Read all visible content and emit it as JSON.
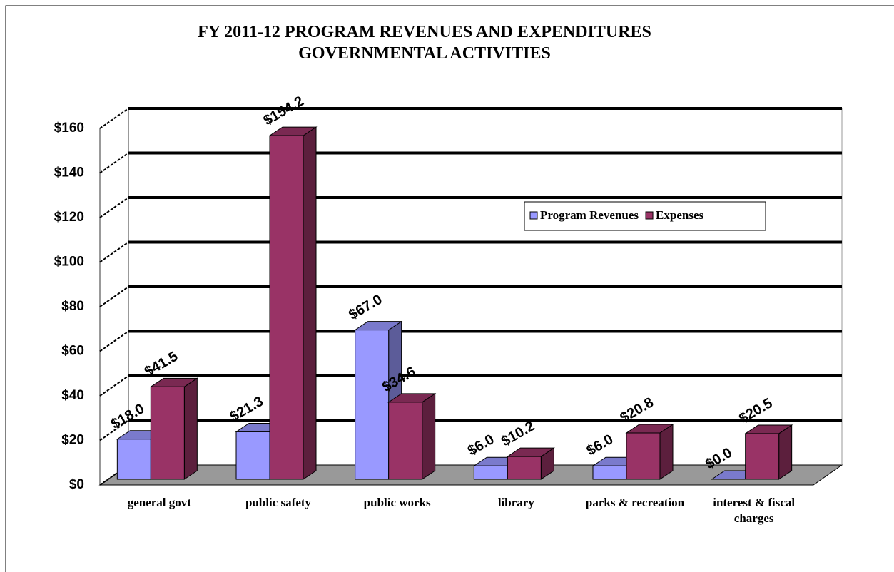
{
  "chart_data": {
    "type": "bar3d",
    "title": "FY 2011-12 PROGRAM REVENUES AND EXPENDITURES GOVERNMENTAL ACTIVITIES",
    "categories": [
      "general govt",
      "public safety",
      "public works",
      "library",
      "parks & recreation",
      "interest & fiscal charges"
    ],
    "series": [
      {
        "name": "Program Revenues",
        "color": "#9999ff",
        "values": [
          18.0,
          21.3,
          67.0,
          6.0,
          6.0,
          0.0
        ],
        "value_labels": [
          "$18.0",
          "$21.3",
          "$67.0",
          "$6.0",
          "$6.0",
          "$0.0"
        ]
      },
      {
        "name": "Expenses",
        "color": "#993366",
        "values": [
          41.5,
          154.2,
          34.6,
          10.2,
          20.8,
          20.5
        ],
        "value_labels": [
          "$41.5",
          "$154.2",
          "$34.6",
          "$10.2",
          "$20.8",
          "$20.5"
        ]
      }
    ],
    "ylim": [
      0,
      160
    ],
    "yticks": [
      {
        "value": 0,
        "label": "$0"
      },
      {
        "value": 20,
        "label": "$20"
      },
      {
        "value": 40,
        "label": "$40"
      },
      {
        "value": 60,
        "label": "$60"
      },
      {
        "value": 80,
        "label": "$80"
      },
      {
        "value": 100,
        "label": "$100"
      },
      {
        "value": 120,
        "label": "$120"
      },
      {
        "value": 140,
        "label": "$140"
      },
      {
        "value": 160,
        "label": "$160"
      }
    ],
    "grid": true
  }
}
